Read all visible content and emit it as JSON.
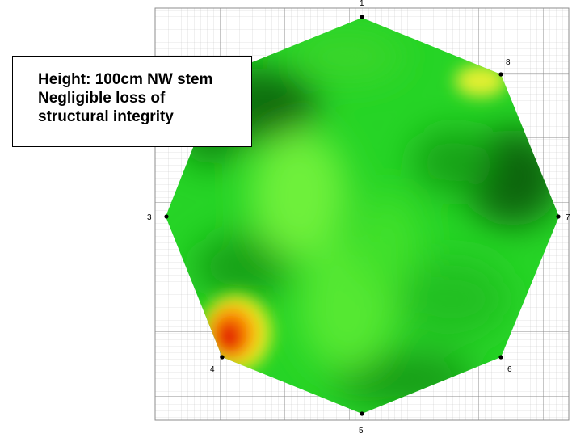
{
  "caption": {
    "line1": "Height: 100cm NW stem",
    "line2": "Negligible loss of",
    "line3": "structural integrity"
  },
  "sensors": [
    {
      "id": "1",
      "label": "1"
    },
    {
      "id": "7",
      "label": "7"
    },
    {
      "id": "8",
      "label": "8"
    },
    {
      "id": "3",
      "label": "3"
    },
    {
      "id": "4",
      "label": "4"
    },
    {
      "id": "5",
      "label": "5"
    },
    {
      "id": "6",
      "label": "6"
    }
  ],
  "colors": {
    "sound_wood_dark": "#0a6a0a",
    "sound_wood": "#1fd21f",
    "bright_green": "#5ef030",
    "yellow": "#e8f020",
    "orange": "#ff9a00",
    "decay_red": "#e01000",
    "grid_minor": "#cccccc",
    "grid_major": "#8c8c8c"
  }
}
